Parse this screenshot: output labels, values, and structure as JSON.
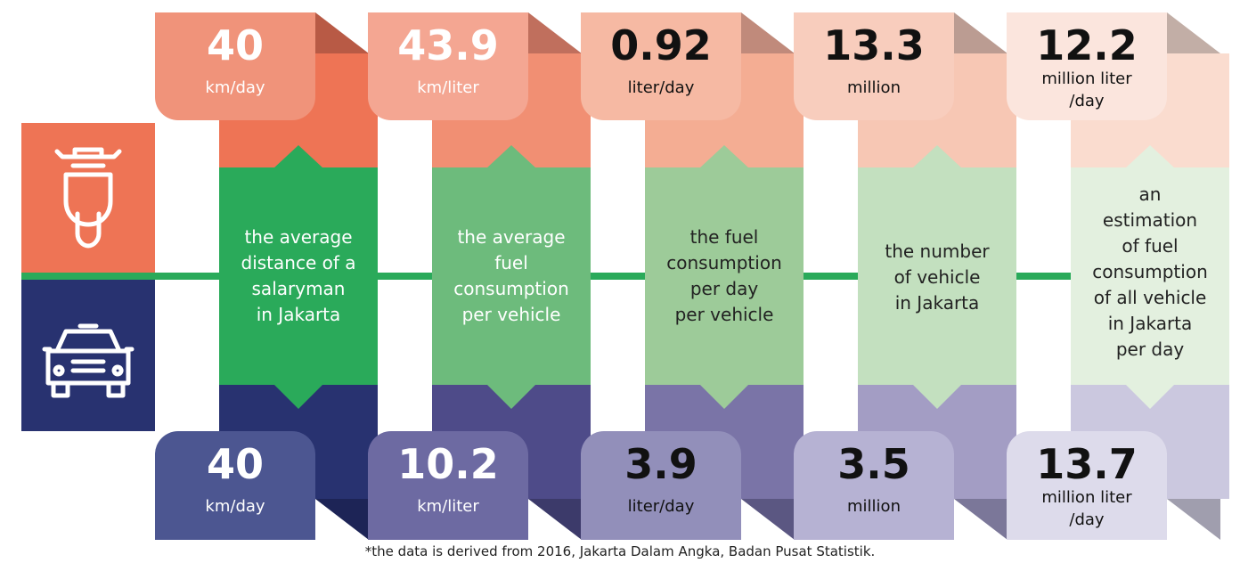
{
  "columns": [
    {
      "top": {
        "value": 40,
        "unit": "km/day"
      },
      "description": "the average\ndistance of a\nsalaryman\nin Jakarta",
      "bottom": {
        "value": 40,
        "unit": "km/day"
      }
    },
    {
      "top": {
        "value": 43.9,
        "unit": "km/liter"
      },
      "description": "the average\nfuel\nconsumption\nper vehicle",
      "bottom": {
        "value": 10.2,
        "unit": "km/liter"
      }
    },
    {
      "top": {
        "value": 0.92,
        "unit": "liter/day"
      },
      "description": "the fuel\nconsumption\nper day\nper vehicle",
      "bottom": {
        "value": 3.9,
        "unit": "liter/day"
      }
    },
    {
      "top": {
        "value": 13.3,
        "unit": "million"
      },
      "description": "the number\nof vehicle\nin Jakarta",
      "bottom": {
        "value": 3.5,
        "unit": "million"
      }
    },
    {
      "top": {
        "value": 12.2,
        "unit": "million liter\n/day"
      },
      "description": "an\nestimation\nof fuel\nconsumption\nof all vehicle\nin Jakarta\nper day",
      "bottom": {
        "value": 13.7,
        "unit": "million liter\n/day"
      }
    }
  ],
  "footnote": "*the data is derived from 2016, Jakarta Dalam Angka, Badan Pusat Statistik."
}
